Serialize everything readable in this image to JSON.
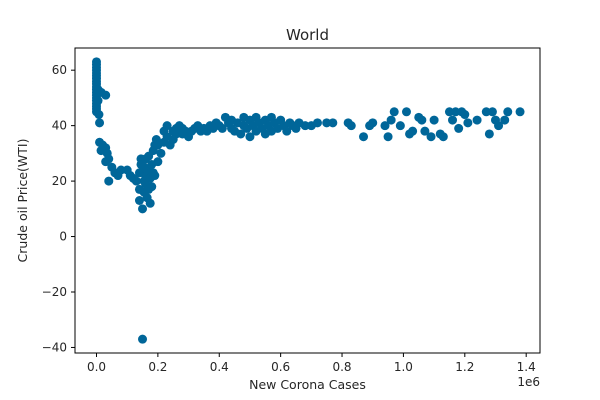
{
  "chart_data": {
    "type": "scatter",
    "title": "World",
    "xlabel": "New Corona Cases",
    "ylabel": "Crude oil Price(WTI)",
    "x_offset_label": "1e6",
    "xlim": [
      -0.07,
      1.445
    ],
    "ylim": [
      -42,
      68
    ],
    "x_ticks": [
      0.0,
      0.2,
      0.4,
      0.6,
      0.8,
      1.0,
      1.2,
      1.4
    ],
    "x_tick_labels": [
      "0.0",
      "0.2",
      "0.4",
      "0.6",
      "0.8",
      "1.0",
      "1.2",
      "1.4"
    ],
    "y_ticks": [
      -40,
      -20,
      0,
      20,
      40,
      60
    ],
    "y_tick_labels": [
      "−40",
      "−20",
      "0",
      "20",
      "40",
      "60"
    ],
    "grid": false,
    "marker_color": "#006699",
    "series": [
      {
        "points": [
          [
            0.0,
            63
          ],
          [
            0.0,
            62
          ],
          [
            0.0,
            61
          ],
          [
            0.0,
            60
          ],
          [
            0.0,
            59
          ],
          [
            0.0,
            58
          ],
          [
            0.0,
            57
          ],
          [
            0.0,
            56
          ],
          [
            0.0,
            55
          ],
          [
            0.0,
            54
          ],
          [
            0.0,
            53
          ],
          [
            0.0,
            52
          ],
          [
            0.0,
            51
          ],
          [
            0.0,
            50
          ],
          [
            0.0,
            49
          ],
          [
            0.0,
            48
          ],
          [
            0.0,
            47
          ],
          [
            0.0,
            46
          ],
          [
            0.0,
            45
          ],
          [
            0.005,
            53
          ],
          [
            0.005,
            49
          ],
          [
            0.008,
            44
          ],
          [
            0.01,
            41
          ],
          [
            0.015,
            52
          ],
          [
            0.03,
            51
          ],
          [
            0.01,
            34
          ],
          [
            0.02,
            33
          ],
          [
            0.015,
            31
          ],
          [
            0.03,
            32
          ],
          [
            0.035,
            30
          ],
          [
            0.03,
            27
          ],
          [
            0.04,
            28
          ],
          [
            0.04,
            20
          ],
          [
            0.05,
            25
          ],
          [
            0.06,
            23
          ],
          [
            0.07,
            22
          ],
          [
            0.08,
            24
          ],
          [
            0.1,
            24
          ],
          [
            0.11,
            22
          ],
          [
            0.12,
            21
          ],
          [
            0.13,
            20
          ],
          [
            0.14,
            23
          ],
          [
            0.14,
            17
          ],
          [
            0.14,
            13
          ],
          [
            0.15,
            10
          ],
          [
            0.145,
            26
          ],
          [
            0.145,
            28
          ],
          [
            0.15,
            27
          ],
          [
            0.155,
            25
          ],
          [
            0.155,
            20
          ],
          [
            0.155,
            16
          ],
          [
            0.16,
            28
          ],
          [
            0.16,
            22
          ],
          [
            0.16,
            19
          ],
          [
            0.165,
            14
          ],
          [
            0.165,
            24
          ],
          [
            0.17,
            17
          ],
          [
            0.17,
            29
          ],
          [
            0.175,
            21
          ],
          [
            0.175,
            12
          ],
          [
            0.18,
            18
          ],
          [
            0.18,
            26
          ],
          [
            0.185,
            31
          ],
          [
            0.185,
            23
          ],
          [
            0.19,
            33
          ],
          [
            0.19,
            22
          ],
          [
            0.195,
            35
          ],
          [
            0.2,
            27
          ],
          [
            0.2,
            33
          ],
          [
            0.21,
            30
          ],
          [
            0.22,
            34
          ],
          [
            0.22,
            38
          ],
          [
            0.23,
            36
          ],
          [
            0.23,
            40
          ],
          [
            0.24,
            33
          ],
          [
            0.25,
            35
          ],
          [
            0.25,
            38
          ],
          [
            0.26,
            37
          ],
          [
            0.26,
            39
          ],
          [
            0.27,
            40
          ],
          [
            0.28,
            39
          ],
          [
            0.28,
            37
          ],
          [
            0.29,
            38
          ],
          [
            0.3,
            36
          ],
          [
            0.31,
            38
          ],
          [
            0.32,
            39
          ],
          [
            0.33,
            40
          ],
          [
            0.34,
            38
          ],
          [
            0.35,
            39
          ],
          [
            0.36,
            38
          ],
          [
            0.37,
            40
          ],
          [
            0.38,
            39
          ],
          [
            0.39,
            41
          ],
          [
            0.4,
            40
          ],
          [
            0.41,
            39
          ],
          [
            0.42,
            43
          ],
          [
            0.43,
            41
          ],
          [
            0.44,
            42
          ],
          [
            0.44,
            39
          ],
          [
            0.45,
            38
          ],
          [
            0.46,
            41
          ],
          [
            0.47,
            37
          ],
          [
            0.48,
            40
          ],
          [
            0.48,
            43
          ],
          [
            0.49,
            39
          ],
          [
            0.5,
            36
          ],
          [
            0.5,
            42
          ],
          [
            0.51,
            40
          ],
          [
            0.52,
            38
          ],
          [
            0.52,
            43
          ],
          [
            0.53,
            41
          ],
          [
            0.54,
            39
          ],
          [
            0.55,
            42
          ],
          [
            0.55,
            37
          ],
          [
            0.56,
            40
          ],
          [
            0.57,
            38
          ],
          [
            0.57,
            43
          ],
          [
            0.58,
            41
          ],
          [
            0.59,
            39
          ],
          [
            0.6,
            42
          ],
          [
            0.61,
            40
          ],
          [
            0.62,
            38
          ],
          [
            0.63,
            41
          ],
          [
            0.64,
            40
          ],
          [
            0.65,
            39
          ],
          [
            0.66,
            41
          ],
          [
            0.68,
            40
          ],
          [
            0.7,
            40
          ],
          [
            0.72,
            41
          ],
          [
            0.75,
            41
          ],
          [
            0.77,
            41
          ],
          [
            0.82,
            41
          ],
          [
            0.83,
            40
          ],
          [
            0.87,
            36
          ],
          [
            0.89,
            40
          ],
          [
            0.9,
            41
          ],
          [
            0.94,
            40
          ],
          [
            0.95,
            36
          ],
          [
            0.96,
            42
          ],
          [
            0.97,
            45
          ],
          [
            0.99,
            40
          ],
          [
            1.01,
            45
          ],
          [
            1.02,
            37
          ],
          [
            1.03,
            38
          ],
          [
            1.05,
            43
          ],
          [
            1.06,
            42
          ],
          [
            1.07,
            38
          ],
          [
            1.09,
            36
          ],
          [
            1.1,
            42
          ],
          [
            1.12,
            37
          ],
          [
            1.13,
            36
          ],
          [
            1.15,
            45
          ],
          [
            1.16,
            42
          ],
          [
            1.17,
            45
          ],
          [
            1.18,
            39
          ],
          [
            1.19,
            45
          ],
          [
            1.2,
            44
          ],
          [
            1.21,
            41
          ],
          [
            1.24,
            42
          ],
          [
            1.27,
            45
          ],
          [
            1.28,
            37
          ],
          [
            1.29,
            45
          ],
          [
            1.3,
            42
          ],
          [
            1.31,
            40
          ],
          [
            1.33,
            42
          ],
          [
            1.34,
            45
          ],
          [
            1.38,
            45
          ],
          [
            0.15,
            -37
          ]
        ]
      }
    ]
  }
}
